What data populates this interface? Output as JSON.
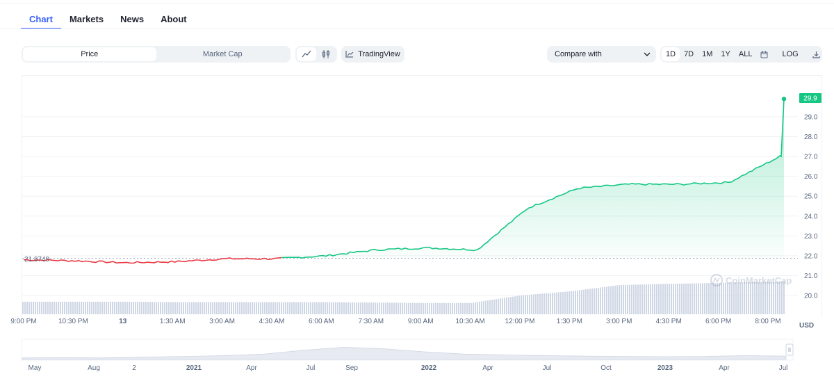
{
  "tabs": [
    {
      "label": "Chart",
      "active": true
    },
    {
      "label": "Markets"
    },
    {
      "label": "News"
    },
    {
      "label": "About"
    }
  ],
  "toolbar": {
    "price_label": "Price",
    "market_cap_label": "Market Cap",
    "tradingview_label": "TradingView",
    "compare_label": "Compare with",
    "ranges": [
      "1D",
      "7D",
      "1M",
      "1Y",
      "ALL"
    ],
    "log_label": "LOG",
    "icons": {
      "line": "line-chart-icon",
      "candle": "candlestick-icon",
      "tv": "tradingview-icon",
      "chevron": "chevron-down-icon",
      "calendar": "calendar-icon",
      "download": "download-icon"
    }
  },
  "chart": {
    "current_price_label": "29.9",
    "open_price_label": "21.8749",
    "currency_label": "USD",
    "watermark": "CoinMarketCap",
    "y_ticks": [
      "29.0",
      "28.0",
      "27.0",
      "26.0",
      "25.0",
      "24.0",
      "23.0",
      "22.0",
      "21.0",
      "20.0"
    ],
    "x_ticks": [
      "9:00 PM",
      "10:30 PM",
      "13",
      "1:30 AM",
      "3:00 AM",
      "4:30 AM",
      "6:00 AM",
      "7:30 AM",
      "9:00 AM",
      "10:30 AM",
      "12:00 PM",
      "1:30 PM",
      "3:00 PM",
      "4:30 PM",
      "6:00 PM",
      "8:00 PM"
    ],
    "nav_ticks": [
      "May",
      "Aug",
      "2",
      "2021",
      "Apr",
      "Jul",
      "Sep",
      "2022",
      "Apr",
      "Jul",
      "Oct",
      "2023",
      "Apr",
      "Jul"
    ],
    "colors": {
      "up": "#16c784",
      "down": "#ea3943",
      "volume": "#cfd6e4",
      "label_bg": "#16c784"
    }
  },
  "chart_data": {
    "type": "line",
    "y_unit": "USD",
    "ylim": [
      19.5,
      30.5
    ],
    "baseline": 21.8749,
    "last": 29.9,
    "x": [
      "9:00 PM",
      "10:30 PM",
      "13",
      "1:30 AM",
      "3:00 AM",
      "4:30 AM",
      "6:00 AM",
      "7:30 AM",
      "9:00 AM",
      "10:30 AM",
      "12:00 PM",
      "1:30 PM",
      "3:00 PM",
      "4:30 PM",
      "6:00 PM",
      "8:00 PM"
    ],
    "price": [
      21.8,
      21.75,
      21.65,
      21.7,
      21.85,
      21.85,
      22.0,
      22.3,
      22.4,
      22.3,
      24.4,
      25.4,
      25.6,
      25.6,
      25.7,
      27.0
    ],
    "volume_level": [
      0.3,
      0.3,
      0.3,
      0.29,
      0.29,
      0.29,
      0.29,
      0.28,
      0.27,
      0.27,
      0.45,
      0.55,
      0.7,
      0.73,
      0.75,
      0.78
    ]
  }
}
